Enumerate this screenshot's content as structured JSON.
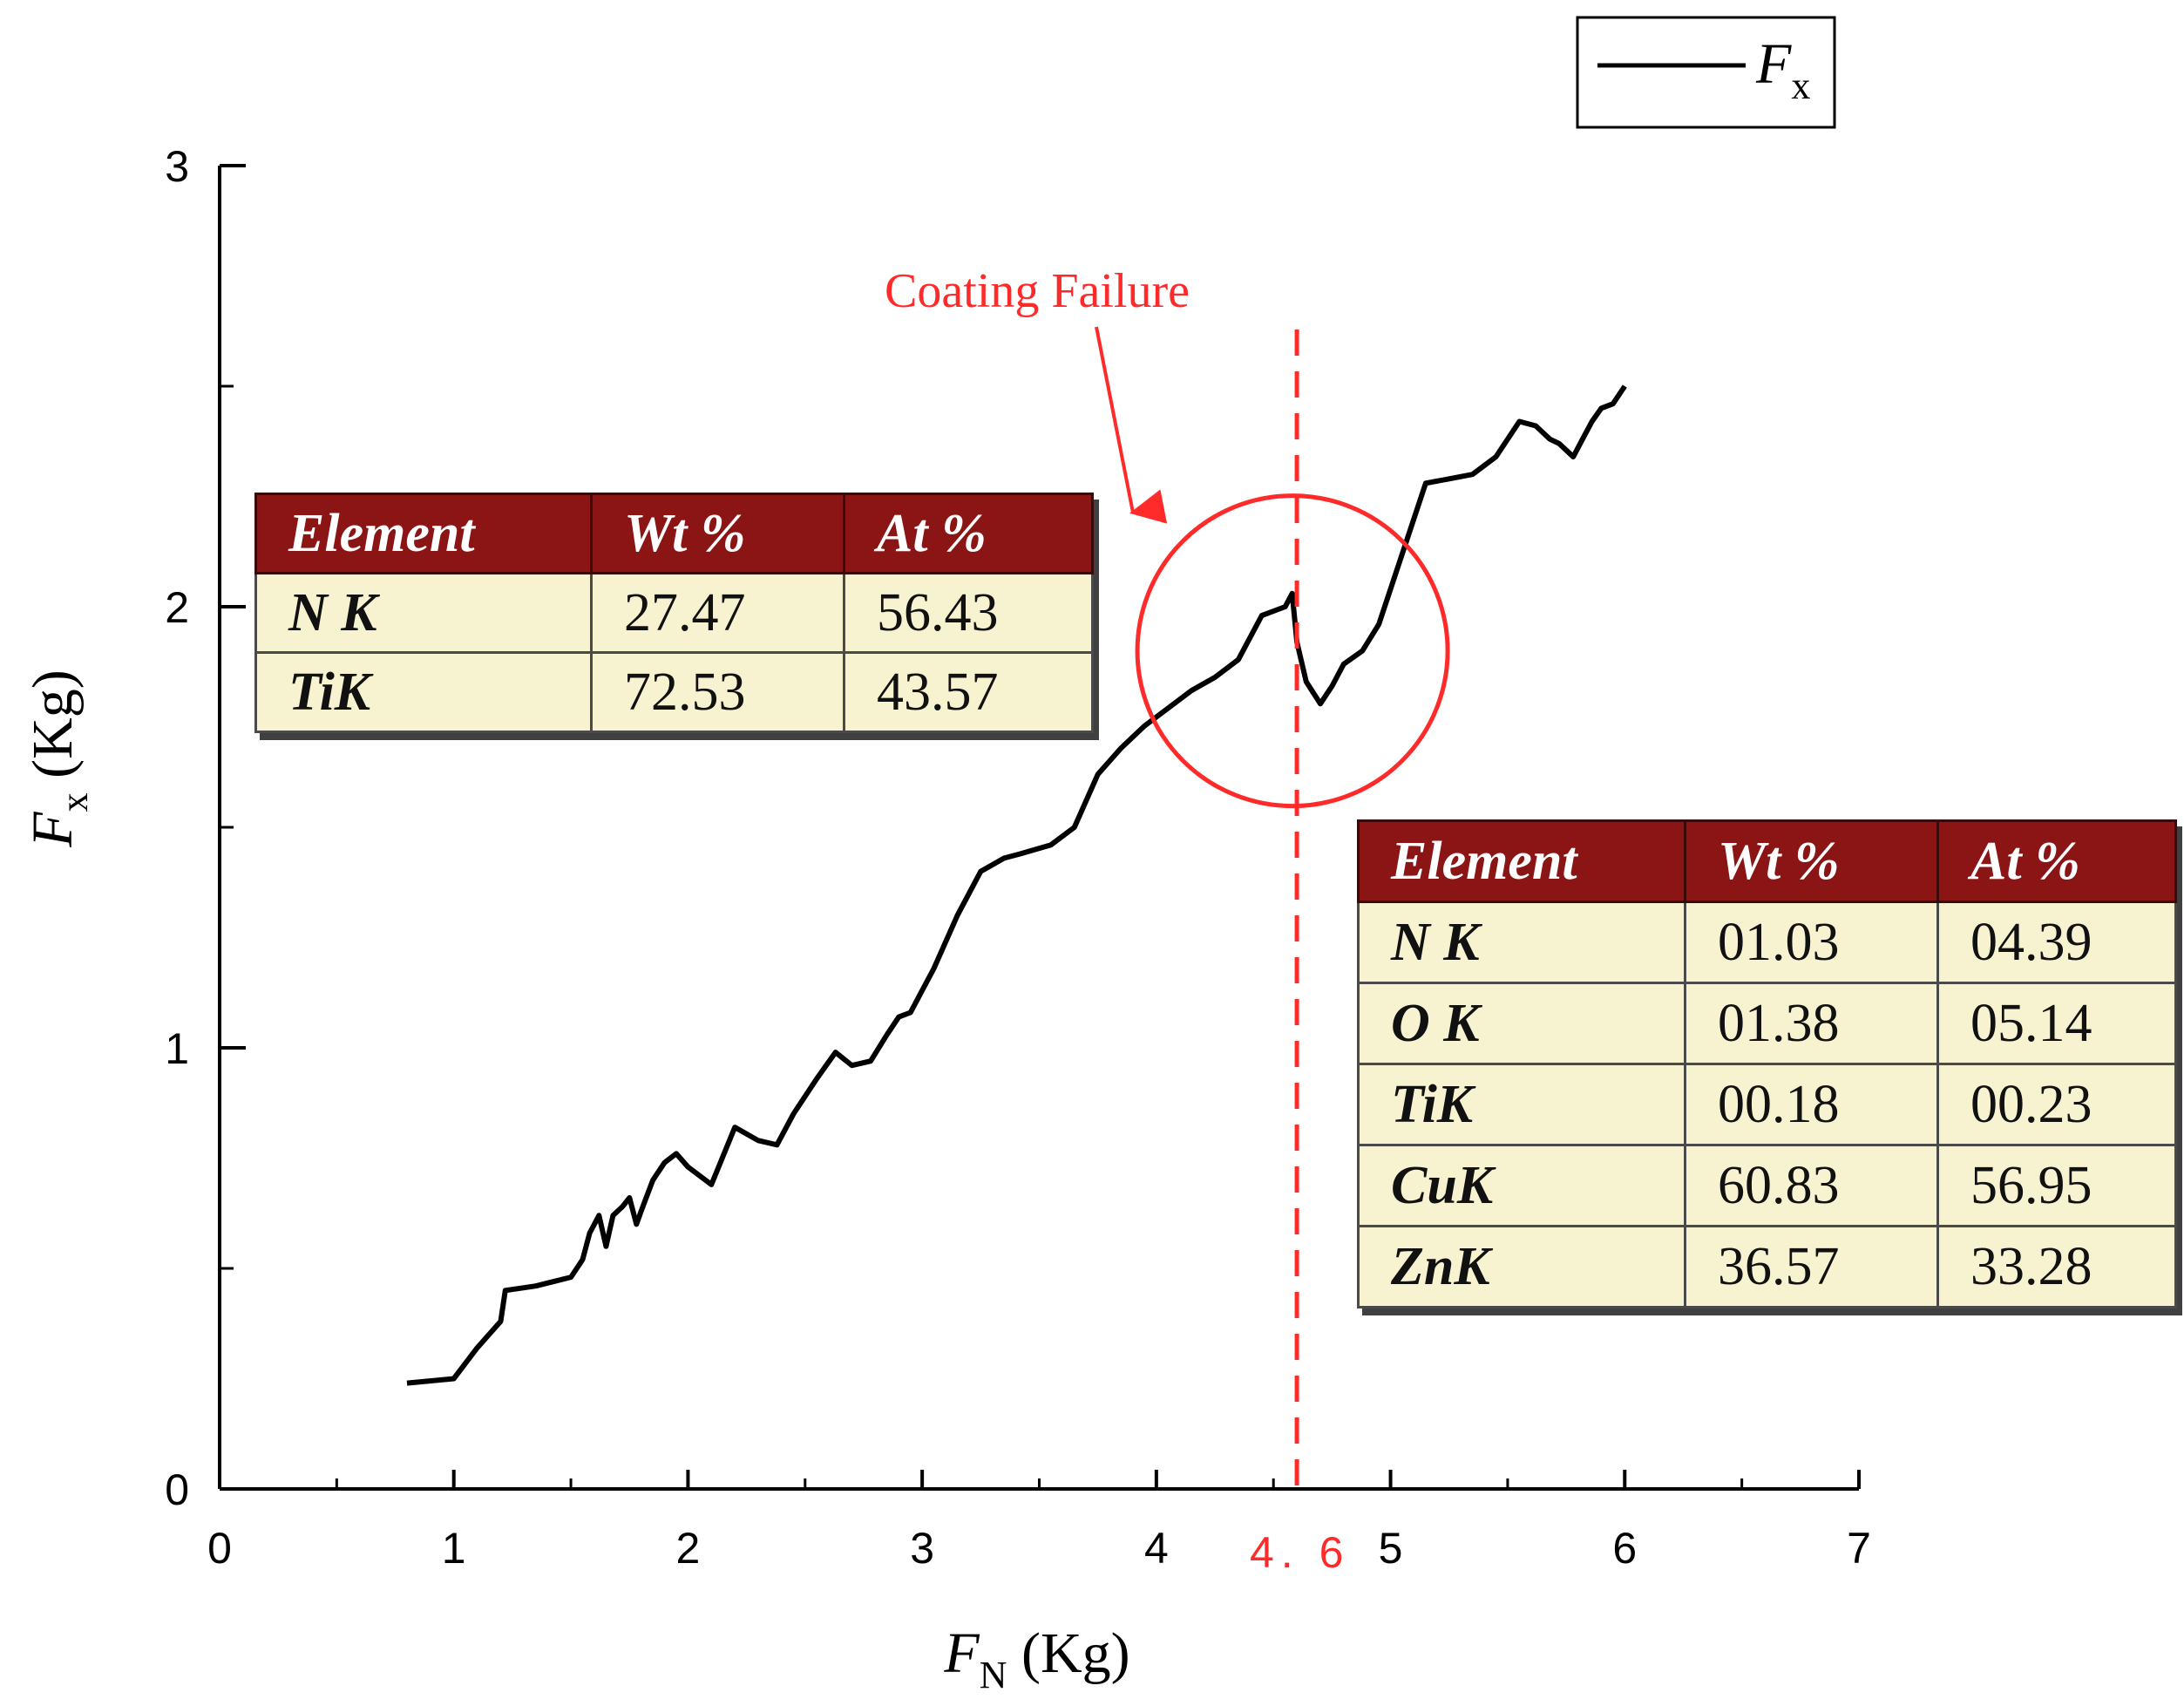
{
  "chart_data": {
    "type": "line",
    "xlabel": {
      "symbol": "F",
      "subscript": "N",
      "unit": " (Kg)"
    },
    "ylabel": {
      "symbol": "F",
      "subscript": "x",
      "unit": " (Kg)"
    },
    "xlim": [
      0,
      7
    ],
    "ylim": [
      0,
      3
    ],
    "x_ticks": [
      "0",
      "1",
      "2",
      "3",
      "4",
      "5",
      "6",
      "7"
    ],
    "y_ticks": [
      "0",
      "1",
      "2",
      "3"
    ],
    "grid": false,
    "legend_position": "top-right",
    "series": [
      {
        "name": "F",
        "name_subscript": "x",
        "color": "#000000",
        "x": [
          0.8,
          1.0,
          1.1,
          1.2,
          1.22,
          1.35,
          1.5,
          1.55,
          1.58,
          1.62,
          1.65,
          1.68,
          1.72,
          1.75,
          1.78,
          1.8,
          1.85,
          1.9,
          1.95,
          2.0,
          2.1,
          2.2,
          2.3,
          2.38,
          2.45,
          2.55,
          2.63,
          2.7,
          2.78,
          2.85,
          2.9,
          2.95,
          3.05,
          3.15,
          3.25,
          3.35,
          3.42,
          3.55,
          3.65,
          3.75,
          3.85,
          3.95,
          4.05,
          4.15,
          4.25,
          4.35,
          4.45,
          4.55,
          4.58,
          4.6,
          4.64,
          4.7,
          4.75,
          4.8,
          4.88,
          4.95,
          5.05,
          5.15,
          5.25,
          5.35,
          5.45,
          5.55,
          5.62,
          5.68,
          5.72,
          5.78,
          5.82,
          5.86,
          5.9,
          5.95,
          6.0
        ],
        "y": [
          0.24,
          0.25,
          0.32,
          0.38,
          0.45,
          0.46,
          0.48,
          0.52,
          0.58,
          0.62,
          0.55,
          0.62,
          0.64,
          0.66,
          0.6,
          0.63,
          0.7,
          0.74,
          0.76,
          0.73,
          0.69,
          0.82,
          0.79,
          0.78,
          0.85,
          0.93,
          0.99,
          0.96,
          0.97,
          1.03,
          1.07,
          1.08,
          1.18,
          1.3,
          1.4,
          1.43,
          1.44,
          1.46,
          1.5,
          1.62,
          1.68,
          1.73,
          1.77,
          1.81,
          1.84,
          1.88,
          1.98,
          2.0,
          2.03,
          1.92,
          1.83,
          1.78,
          1.82,
          1.87,
          1.9,
          1.96,
          2.12,
          2.28,
          2.29,
          2.3,
          2.34,
          2.42,
          2.41,
          2.38,
          2.37,
          2.34,
          2.38,
          2.42,
          2.45,
          2.46,
          2.5
        ]
      }
    ],
    "annotations": {
      "failure_label": "Coating Failure",
      "failure_x": 4.6,
      "failure_x_label": "4. 6",
      "circle_center": [
        4.6,
        1.9
      ],
      "color": "#ff2a2a"
    }
  },
  "tables": {
    "headers": [
      "Element",
      "Wt %",
      "At %"
    ],
    "table1": {
      "rows": [
        {
          "element": "N K",
          "wt": "27.47",
          "at": "56.43"
        },
        {
          "element": "TiK",
          "wt": "72.53",
          "at": "43.57"
        }
      ]
    },
    "table2": {
      "rows": [
        {
          "element": "N K",
          "wt": "01.03",
          "at": "04.39"
        },
        {
          "element": "O K",
          "wt": "01.38",
          "at": "05.14"
        },
        {
          "element": "TiK",
          "wt": "00.18",
          "at": "00.23"
        },
        {
          "element": "CuK",
          "wt": "60.83",
          "at": "56.95"
        },
        {
          "element": "ZnK",
          "wt": "36.57",
          "at": "33.28"
        }
      ]
    },
    "header_color": "#8b1414",
    "cell_color": "#f7f3d0"
  }
}
